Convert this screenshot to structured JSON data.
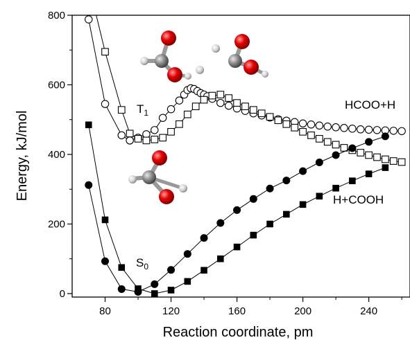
{
  "chart_data": {
    "type": "scatter",
    "title": "",
    "xlabel": "Reaction coordinate, pm",
    "ylabel": "Energy, kJ/mol",
    "xlim": [
      60,
      265
    ],
    "ylim": [
      -10,
      800
    ],
    "xticks": [
      80,
      120,
      160,
      200,
      240
    ],
    "yticks": [
      0,
      200,
      400,
      600,
      800
    ],
    "grid": false,
    "legend": "none",
    "annotations": [
      {
        "text": "HCOO+H"
      },
      {
        "text": "H+COOH"
      },
      {
        "base": "T",
        "sub": "1"
      },
      {
        "base": "S",
        "sub": "0"
      }
    ],
    "series": [
      {
        "marker": "open-circle",
        "color": "#000000",
        "x": [
          70,
          80,
          90,
          95,
          100,
          105,
          110,
          115,
          120,
          125,
          128,
          130,
          132,
          134,
          136,
          138,
          140,
          142,
          145,
          150,
          155,
          160,
          165,
          170,
          175,
          180,
          185,
          190,
          195,
          200,
          205,
          210,
          215,
          220,
          225,
          230,
          235,
          240,
          245,
          250,
          255,
          260
        ],
        "y": [
          788,
          545,
          455,
          440,
          448,
          458,
          470,
          505,
          530,
          555,
          572,
          585,
          590,
          588,
          582,
          576,
          572,
          567,
          560,
          548,
          540,
          532,
          525,
          518,
          512,
          506,
          501,
          497,
          493,
          489,
          486,
          483,
          480,
          478,
          476,
          474,
          472,
          471,
          470,
          469,
          468,
          467
        ]
      },
      {
        "marker": "open-square",
        "color": "#000000",
        "x": [
          70,
          80,
          90,
          95,
          100,
          105,
          110,
          115,
          120,
          125,
          130,
          135,
          140,
          145,
          150,
          155,
          160,
          165,
          170,
          175,
          180,
          185,
          190,
          195,
          200,
          205,
          210,
          215,
          220,
          225,
          230,
          235,
          240,
          245,
          250,
          255,
          260
        ],
        "y": [
          890,
          695,
          528,
          460,
          445,
          440,
          443,
          448,
          465,
          487,
          515,
          538,
          557,
          569,
          572,
          562,
          548,
          538,
          528,
          518,
          508,
          498,
          487,
          477,
          465,
          455,
          445,
          436,
          428,
          419,
          412,
          405,
          398,
          392,
          386,
          381,
          378
        ]
      },
      {
        "marker": "filled-circle",
        "color": "#000000",
        "x": [
          70,
          80,
          90,
          100,
          110,
          120,
          130,
          140,
          150,
          160,
          170,
          180,
          190,
          200,
          210,
          220,
          230,
          240,
          250
        ],
        "y": [
          312,
          93,
          13,
          5,
          27,
          68,
          114,
          160,
          203,
          240,
          272,
          302,
          325,
          352,
          377,
          398,
          418,
          436,
          452
        ]
      },
      {
        "marker": "filled-square",
        "color": "#000000",
        "x": [
          70,
          80,
          90,
          100,
          110,
          120,
          130,
          140,
          150,
          160,
          170,
          180,
          190,
          200,
          210,
          220,
          230,
          240,
          250
        ],
        "y": [
          485,
          212,
          75,
          14,
          0,
          10,
          35,
          67,
          100,
          134,
          168,
          200,
          228,
          256,
          280,
          303,
          324,
          344,
          362
        ]
      }
    ]
  },
  "molecules": [
    {
      "name": "molecule-hcooh-upper-left"
    },
    {
      "name": "molecule-hcooh-upper-right"
    },
    {
      "name": "molecule-hcooh-middle"
    }
  ]
}
